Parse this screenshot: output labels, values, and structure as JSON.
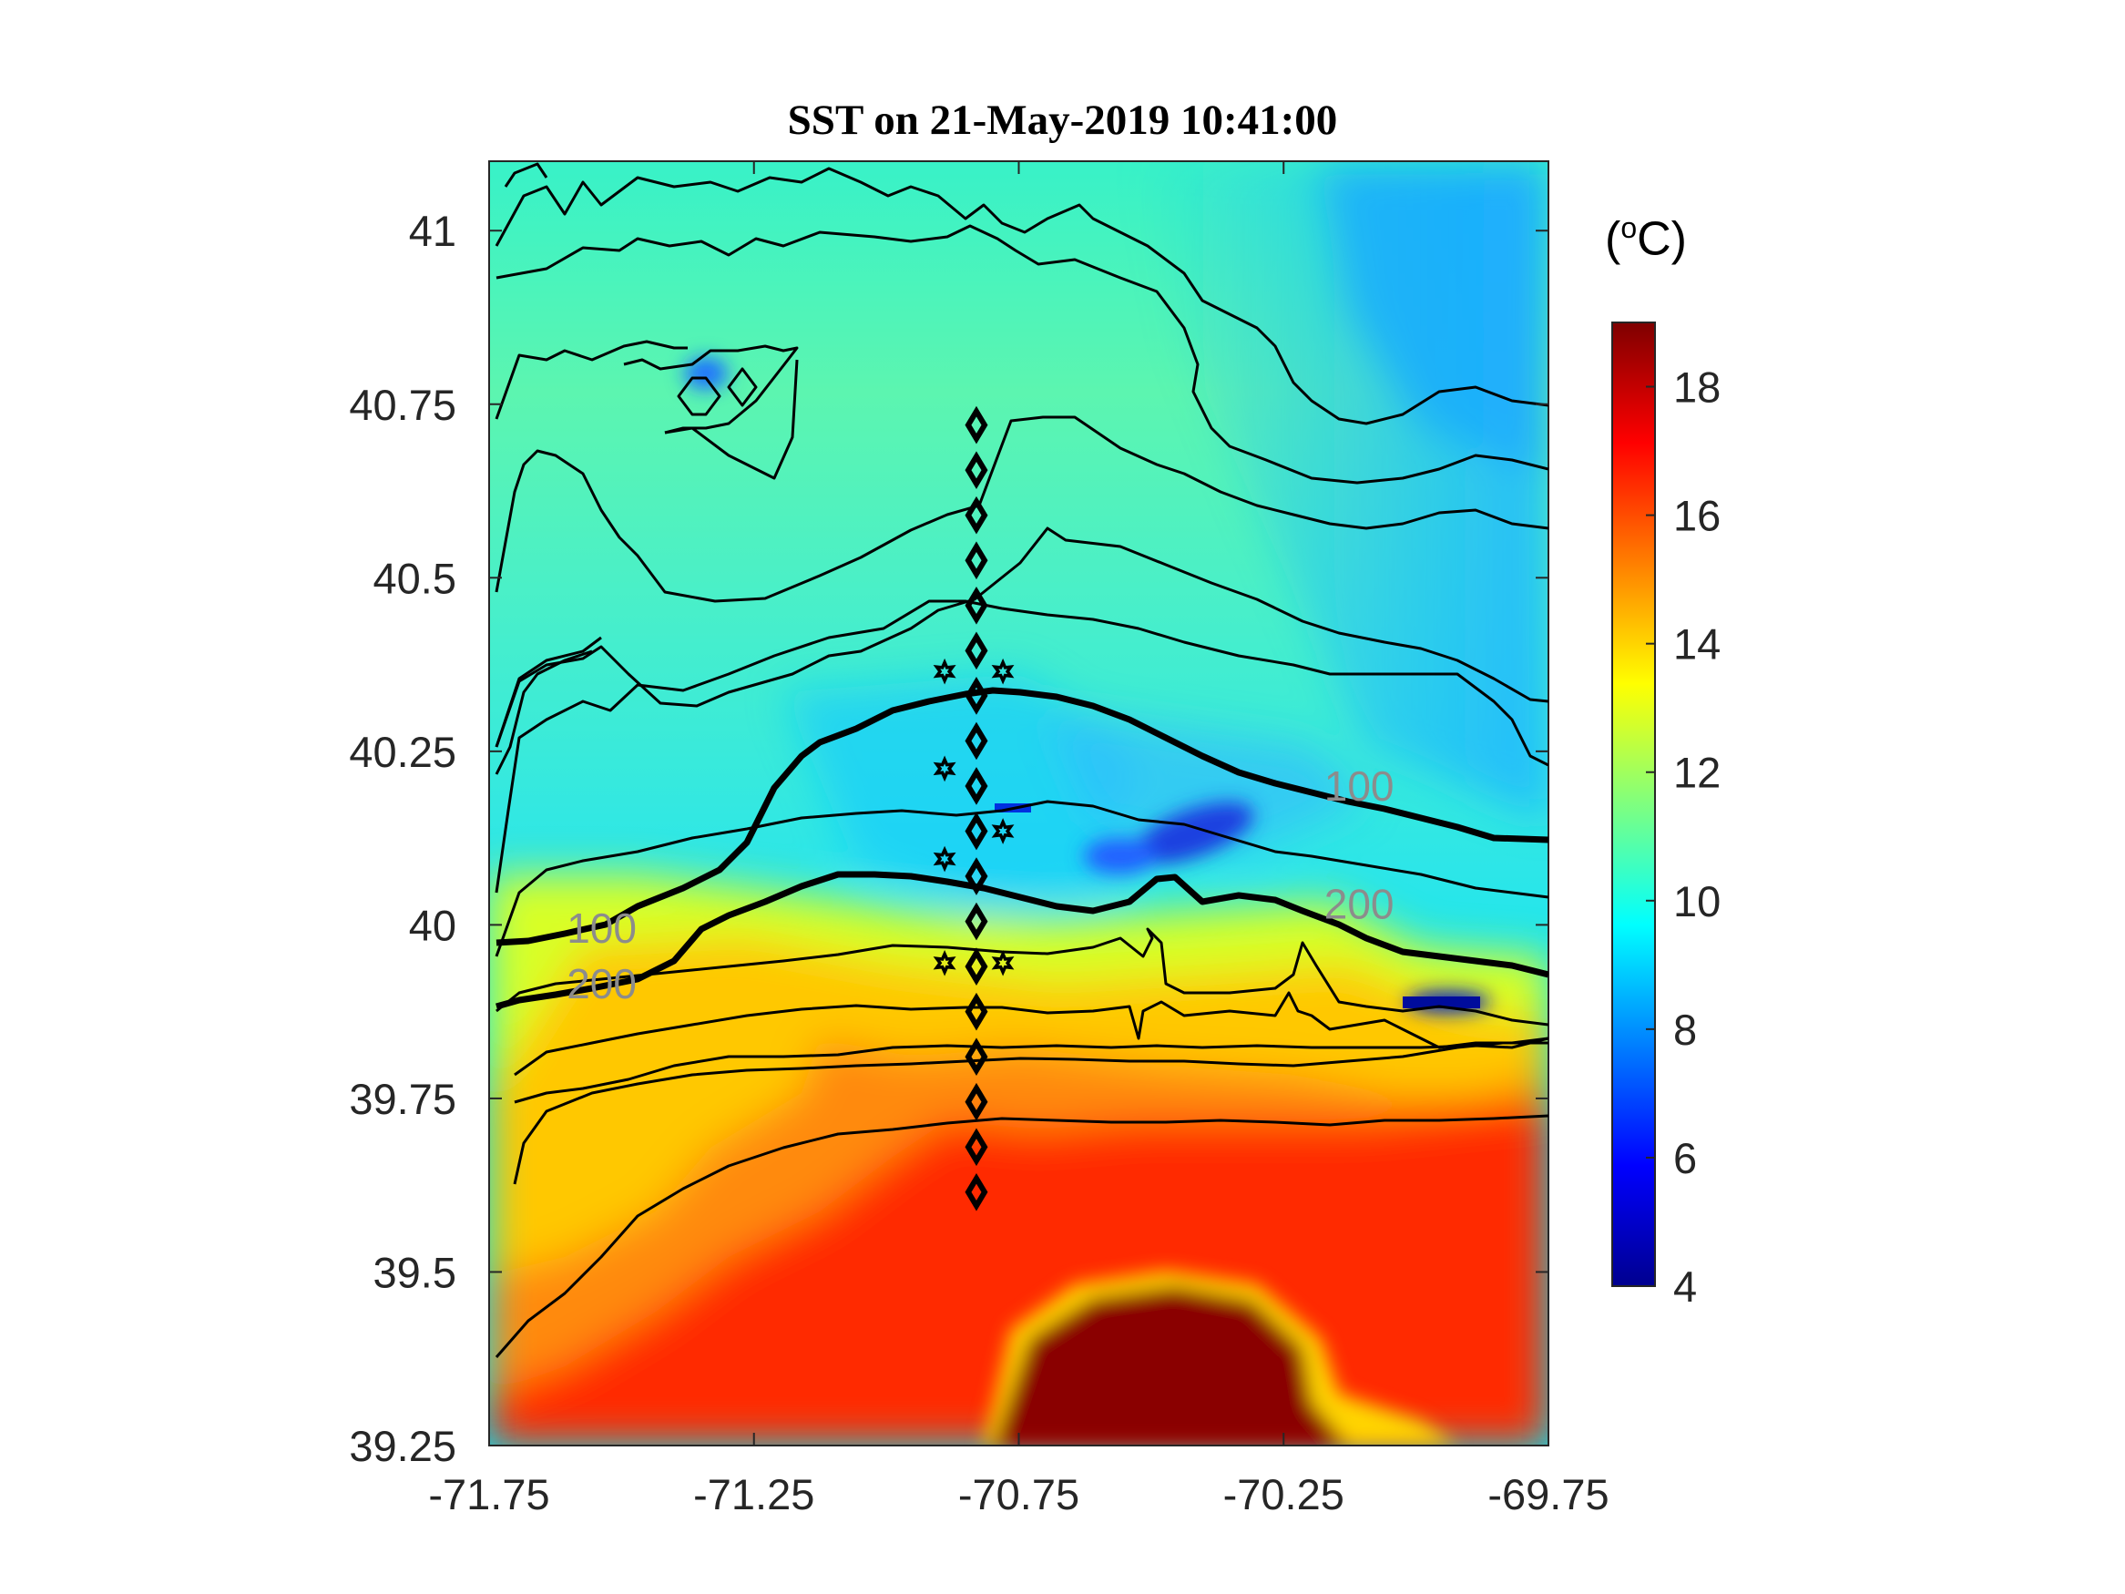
{
  "figure": {
    "title": "SST on 21-May-2019 10:41:00",
    "colorbar_unit": "(°C)",
    "colorbar_unit_parts": {
      "open": "(",
      "superscript": "o",
      "unit": "C)"
    }
  },
  "colors": {
    "colormap": [
      "#00008f",
      "#0000ff",
      "#007fff",
      "#00ffff",
      "#7fff7f",
      "#ffff00",
      "#ff7f00",
      "#ff0000",
      "#7f0000"
    ],
    "contour": "#000000",
    "contour_label": "#8c8c8c"
  },
  "chart_data": {
    "type": "heatmap",
    "title": "SST on 21-May-2019 10:41:00",
    "xlabel": "",
    "ylabel": "",
    "xlim": [
      -71.75,
      -69.75
    ],
    "ylim": [
      39.25,
      41.1
    ],
    "xticks": [
      "-71.75",
      "-71.25",
      "-70.75",
      "-70.25",
      "-69.75"
    ],
    "yticks": [
      "39.25",
      "39.5",
      "39.75",
      "40",
      "40.25",
      "40.5",
      "40.75",
      "41"
    ],
    "colorbar": {
      "min": 4,
      "max": 19,
      "ticks": [
        "4",
        "6",
        "8",
        "10",
        "12",
        "14",
        "16",
        "18"
      ],
      "unit": "(°C)",
      "colormap": "jet"
    },
    "isobath_labels": [
      {
        "text": "100",
        "lon": -71.6,
        "lat": 39.995
      },
      {
        "text": "200",
        "lon": -71.6,
        "lat": 39.915
      },
      {
        "text": "100",
        "lon": -70.17,
        "lat": 40.2
      },
      {
        "text": "200",
        "lon": -70.17,
        "lat": 40.03
      }
    ],
    "stations_diamond": {
      "lon": -70.83,
      "lat": [
        40.72,
        40.655,
        40.59,
        40.525,
        40.46,
        40.395,
        40.33,
        40.265,
        40.2,
        40.135,
        40.07,
        40.005,
        39.94,
        39.875,
        39.81,
        39.745,
        39.68,
        39.615
      ]
    },
    "stations_star": [
      {
        "lon": -70.89,
        "lat": 40.365
      },
      {
        "lon": -70.78,
        "lat": 40.365
      },
      {
        "lon": -70.89,
        "lat": 40.225
      },
      {
        "lon": -70.78,
        "lat": 40.135
      },
      {
        "lon": -70.89,
        "lat": 40.095
      },
      {
        "lon": -70.89,
        "lat": 39.945
      },
      {
        "lon": -70.78,
        "lat": 39.945
      }
    ]
  }
}
